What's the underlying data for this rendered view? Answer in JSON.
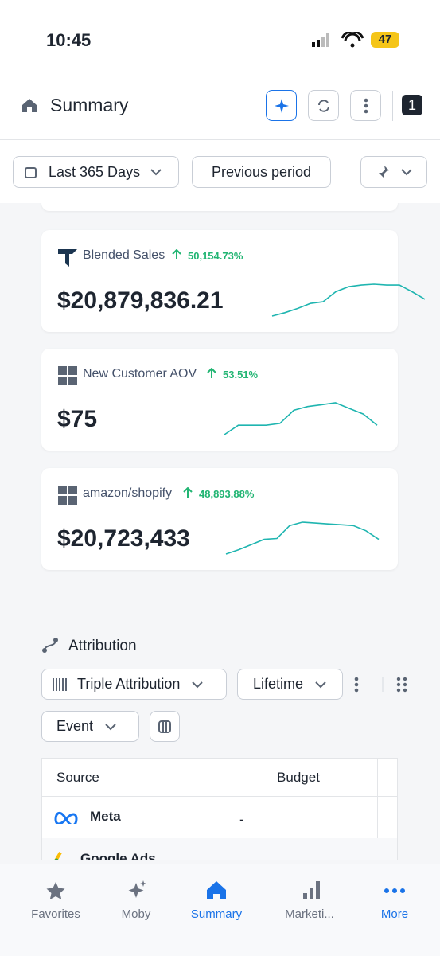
{
  "status_bar": {
    "time": "10:45",
    "battery": "47"
  },
  "header": {
    "title": "Summary",
    "badge": "1"
  },
  "filters": {
    "date_range": "Last 365 Days",
    "comparison": "Previous period"
  },
  "metrics": [
    {
      "label": "Blended Sales",
      "change": "50,154.73%",
      "value": "$20,879,836.21",
      "trend": [
        0,
        4,
        9,
        15,
        17,
        29,
        35,
        37,
        38,
        37,
        37,
        29,
        20
      ]
    },
    {
      "label": "New Customer AOV",
      "change": "53.51%",
      "value": "$75",
      "trend": [
        0,
        5,
        5,
        5,
        6,
        13,
        15,
        16,
        17,
        14,
        11,
        5
      ]
    },
    {
      "label": "amazon/shopify",
      "change": "48,893.88%",
      "value": "$20,723,433",
      "trend": [
        0,
        5,
        11,
        17,
        18,
        33,
        37,
        36,
        35,
        34,
        33,
        27,
        17
      ]
    }
  ],
  "attribution": {
    "title": "Attribution",
    "model": "Triple Attribution",
    "window": "Lifetime",
    "type": "Event"
  },
  "table": {
    "columns": [
      "Source",
      "Budget"
    ],
    "rows": [
      [
        "Meta",
        "-"
      ],
      [
        "Google Ads"
      ]
    ]
  },
  "tabs": [
    "Favorites",
    "Moby",
    "Summary",
    "Marketi...",
    "More"
  ]
}
